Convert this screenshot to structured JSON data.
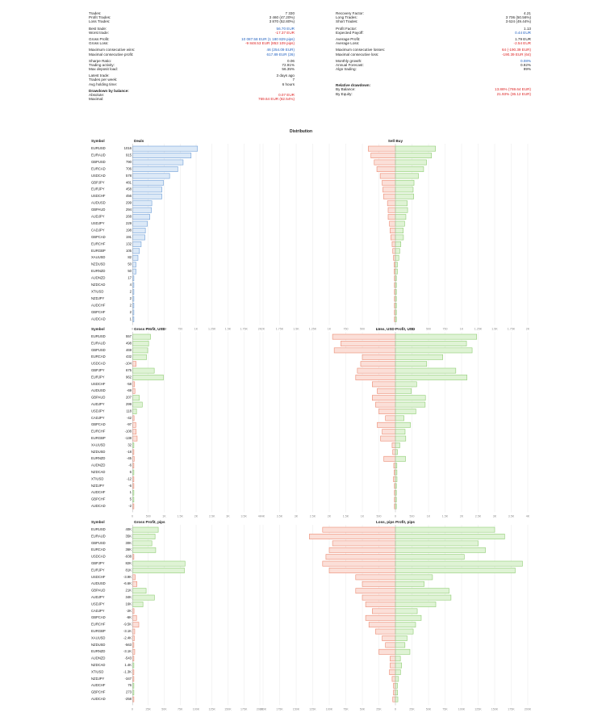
{
  "stats": {
    "left": [
      {
        "k": "Trades:",
        "v": "7 330",
        "c": ""
      },
      {
        "k": "Profit Trades:",
        "v": "3 460 (47.20%)",
        "c": ""
      },
      {
        "k": "Loss Trades:",
        "v": "3 870 (52.80%)",
        "c": ""
      },
      {
        "gap": true
      },
      {
        "k": "Best trade:",
        "v": "56.70 EUR",
        "c": "blue"
      },
      {
        "k": "Worst trade:",
        "v": "-17.37 EUR",
        "c": "red"
      },
      {
        "gap": true
      },
      {
        "k": "Gross Profit:",
        "v": "10 087.58 EUR (1 180 829 pips)",
        "c": "blue"
      },
      {
        "k": "Gross Loss:",
        "v": "-9 848.53 EUR (853 109 pips)",
        "c": "red"
      },
      {
        "gap": true
      },
      {
        "k": "Maximum consecutive wins:",
        "v": "46 (254.09 EUR)",
        "c": "blue"
      },
      {
        "k": "Maximal consecutive profit:",
        "v": "617.89 EUR (26)",
        "c": "blue"
      },
      {
        "gap": true
      },
      {
        "k": "Sharpe Ratio:",
        "v": "0.06",
        "c": ""
      },
      {
        "k": "Trading activity:",
        "v": "72.91%",
        "c": ""
      },
      {
        "k": "Max deposit load:",
        "v": "56.35%",
        "c": ""
      },
      {
        "gap": true
      },
      {
        "k": "Latest trade:",
        "v": "3 days ago",
        "c": ""
      },
      {
        "k": "Trades per week:",
        "v": "7",
        "c": ""
      },
      {
        "k": "Avg holding time:",
        "v": "6 hours",
        "c": ""
      },
      {
        "gap": true
      },
      {
        "k": "Drawdown by balance:",
        "v": "",
        "c": "",
        "h": true
      },
      {
        "k": "Absolute:",
        "v": "0.07 EUR",
        "c": "red"
      },
      {
        "k": "Maximal:",
        "v": "769.64 EUR (82.54%)",
        "c": "red"
      }
    ],
    "right": [
      {
        "k": "Recovery Factor:",
        "v": "4.21",
        "c": ""
      },
      {
        "k": "Long Trades:",
        "v": "3 706 (50.56%)",
        "c": ""
      },
      {
        "k": "Short Trades:",
        "v": "3 624 (49.44%)",
        "c": ""
      },
      {
        "gap": true
      },
      {
        "k": "Profit Factor:",
        "v": "1.13",
        "c": ""
      },
      {
        "k": "Expected Payoff:",
        "v": "0.44 EUR",
        "c": "blue"
      },
      {
        "gap": true
      },
      {
        "k": "Average Profit:",
        "v": "1.79 EUR",
        "c": ""
      },
      {
        "k": "Average Loss:",
        "v": "-2.54 EUR",
        "c": "red"
      },
      {
        "gap": true
      },
      {
        "k": "Maximum consecutive losses:",
        "v": "64 (-190.39 EUR)",
        "c": "red"
      },
      {
        "k": "Maximal consecutive loss:",
        "v": "-190.39 EUR (64)",
        "c": "red"
      },
      {
        "gap": true
      },
      {
        "k": "Monthly growth:",
        "v": "0.08%",
        "c": "blue"
      },
      {
        "k": "Annual Forecast:",
        "v": "0.92%",
        "c": ""
      },
      {
        "k": "Algo trading:",
        "v": "99%",
        "c": ""
      },
      {
        "gap": true
      },
      {
        "gap": true
      },
      {
        "gap": true
      },
      {
        "gap": true
      },
      {
        "gap": true
      },
      {
        "k": "Relative drawdown:",
        "v": "",
        "c": "",
        "h": true
      },
      {
        "k": "By Balance:",
        "v": "13.86% (769.64 EUR)",
        "c": "red"
      },
      {
        "k": "By Equity:",
        "v": "21.93% (36.12 EUR)",
        "c": "red"
      }
    ]
  },
  "dist_title": "Distribution",
  "chart_data": [
    {
      "type": "bar",
      "header_symbol": "Symbol",
      "left_title": "Deals",
      "right_title": "Sell  Buy",
      "symbols": [
        "EURUSD",
        "EURAUD",
        "GBPUSD",
        "EURCAD",
        "USDCAD",
        "GBPJPY",
        "EURJPY",
        "USDCHF",
        "AUDUSD",
        "GBPAUD",
        "AUDJPY",
        "USDJPY",
        "CADJPY",
        "GBPCAD",
        "EURCHF",
        "EURGBP",
        "XAUUSD",
        "NZDUSD",
        "EURNZD",
        "AUDNZD",
        "NZDCAD",
        "XTIUSD",
        "NZDJPY",
        "AUDCHF",
        "GBPCHF",
        "AUDCAD"
      ],
      "labels": [
        "1016",
        "915",
        "790",
        "706",
        "578",
        "481",
        "458",
        "456",
        "299",
        "294",
        "268",
        "229",
        "198",
        "191",
        "132",
        "105",
        "82",
        "50",
        "50",
        "17",
        "4",
        "2",
        "2",
        "2",
        "2",
        "1"
      ],
      "values": [
        1016,
        915,
        790,
        706,
        578,
        481,
        458,
        456,
        299,
        294,
        268,
        229,
        198,
        191,
        132,
        105,
        82,
        50,
        50,
        17,
        4,
        2,
        2,
        2,
        2,
        1
      ],
      "sell": [
        410,
        370,
        320,
        280,
        230,
        200,
        190,
        180,
        120,
        110,
        110,
        90,
        80,
        70,
        50,
        40,
        30,
        20,
        20,
        8,
        2,
        1,
        1,
        1,
        1,
        1
      ],
      "buy": [
        606,
        545,
        470,
        426,
        348,
        281,
        268,
        276,
        179,
        184,
        158,
        139,
        118,
        121,
        82,
        65,
        52,
        30,
        30,
        9,
        2,
        1,
        1,
        1,
        1,
        0
      ],
      "xlim": [
        0,
        2000
      ],
      "xticks_left": [
        "0",
        "250",
        "500",
        "750",
        "1K",
        "1.25K",
        "1.5K",
        "1.75K",
        "2K"
      ],
      "xticks_right": [
        "2K",
        "1.75K",
        "1.5K",
        "1.25K",
        "1K",
        "750",
        "500",
        "250",
        "0",
        "250",
        "500",
        "750",
        "1K",
        "1.25K",
        "1.5K",
        "1.75K",
        "2K"
      ]
    },
    {
      "type": "bar",
      "header_symbol": "Symbol",
      "left_title": "Gross Profit, USD",
      "right_title": "Loss, USD  Profit, USD",
      "symbols": [
        "EURUSD",
        "EURAUD",
        "GBPUSD",
        "EURCAD",
        "USDCAD",
        "GBPJPY",
        "EURJPY",
        "USDCHF",
        "AUDUSD",
        "GBPAUD",
        "AUDJPY",
        "USDJPY",
        "CADJPY",
        "GBPCAD",
        "EURCHF",
        "EURGBP",
        "XAUUSD",
        "NZDUSD",
        "EURNZD",
        "AUDNZD",
        "NZDCAD",
        "XTIUSD",
        "NZDJPY",
        "AUDCHF",
        "GBPCHF",
        "AUDCAD"
      ],
      "labels": [
        "557",
        "498",
        "469",
        "432",
        "-104",
        "675",
        "962",
        "-58",
        "-69",
        "207",
        "299",
        "118",
        "-42",
        "-97",
        "-108",
        "-138",
        "32",
        "-18",
        "-45",
        "-6",
        "6",
        "-12",
        "-6",
        "1",
        "5",
        "-2"
      ],
      "values": [
        557,
        498,
        469,
        432,
        -104,
        675,
        962,
        -58,
        -69,
        207,
        299,
        118,
        -42,
        -97,
        -108,
        -138,
        32,
        -18,
        -45,
        -6,
        6,
        -12,
        -6,
        1,
        5,
        -2
      ],
      "loss": [
        1900,
        1650,
        1850,
        1000,
        1050,
        1150,
        1200,
        700,
        550,
        700,
        600,
        500,
        300,
        550,
        400,
        450,
        100,
        80,
        350,
        50,
        40,
        60,
        30,
        10,
        10,
        20
      ],
      "profit": [
        2457,
        2148,
        2319,
        1432,
        946,
        1825,
        2162,
        642,
        481,
        907,
        899,
        618,
        258,
        453,
        292,
        312,
        132,
        62,
        305,
        44,
        46,
        48,
        24,
        11,
        15,
        18
      ],
      "xlim": [
        0,
        4000
      ],
      "xticks_left": [
        "0",
        "500",
        "1K",
        "1.5K",
        "2K",
        "2.5K",
        "3K",
        "3.5K",
        "4K"
      ],
      "xticks_right": [
        "4K",
        "3.5K",
        "3K",
        "2.5K",
        "2K",
        "1.5K",
        "1K",
        "500",
        "0",
        "500",
        "1K",
        "1.5K",
        "2K",
        "2.5K",
        "3K",
        "3.5K",
        "4K"
      ]
    },
    {
      "type": "bar",
      "header_symbol": "Symbol",
      "left_title": "Gross Profit, pips",
      "right_title": "Loss, pips  Profit, pips",
      "symbols": [
        "EURUSD",
        "EURAUD",
        "GBPUSD",
        "EURCAD",
        "USDCAD",
        "GBPJPY",
        "EURJPY",
        "USDCHF",
        "AUDUSD",
        "GBPAUD",
        "AUDJPY",
        "USDJPY",
        "CADJPY",
        "GBPCAD",
        "EURCHF",
        "EURGBP",
        "XAUUSD",
        "NZDUSD",
        "EURNZD",
        "AUDNZD",
        "NZDCAD",
        "XTIUSD",
        "NZDJPY",
        "AUDCHF",
        "GBPCHF",
        "AUDCAD"
      ],
      "labels": [
        "40K",
        "35K",
        "30K",
        "36K",
        "-938",
        "82K",
        "81K",
        "-3.9K",
        "-6.6K",
        "21K",
        "34K",
        "16K",
        "-2K",
        "-6K",
        "-9.5K",
        "-3.1K",
        "-2.4K",
        "-563",
        "-3.1K",
        "-543",
        "1.4K",
        "-1.3K",
        "-347",
        "76",
        "273",
        "-258"
      ],
      "values": [
        40000,
        35000,
        30000,
        36000,
        -938,
        82000,
        81000,
        -3900,
        -6600,
        21000,
        34000,
        16000,
        -2000,
        -6000,
        -9500,
        -3100,
        -2400,
        -563,
        -3100,
        -543,
        1400,
        -1300,
        -347,
        76,
        273,
        -258
      ],
      "loss": [
        110000,
        130000,
        95000,
        100000,
        105000,
        110000,
        100000,
        60000,
        50000,
        60000,
        50000,
        45000,
        35000,
        45000,
        40000,
        30000,
        20000,
        15000,
        25000,
        8000,
        8000,
        9000,
        5000,
        3000,
        3000,
        4000
      ],
      "profit": [
        150000,
        165000,
        125000,
        136000,
        104000,
        192000,
        181000,
        56000,
        43400,
        81000,
        84000,
        61000,
        33000,
        39000,
        30500,
        26900,
        17600,
        14400,
        21900,
        7500,
        9400,
        7700,
        4700,
        3100,
        3300,
        3700
      ],
      "xlim": [
        0,
        200000
      ],
      "xticks_left": [
        "0",
        "25K",
        "50K",
        "75K",
        "100K",
        "125K",
        "150K",
        "175K",
        "200K"
      ],
      "xticks_right": [
        "200K",
        "175K",
        "150K",
        "125K",
        "100K",
        "75K",
        "50K",
        "25K",
        "0",
        "25K",
        "50K",
        "75K",
        "100K",
        "125K",
        "150K",
        "175K",
        "200K"
      ]
    }
  ],
  "colors": {
    "blue_fill": "#dce9f7",
    "blue_stroke": "#6f9fd8",
    "green_fill": "#dff3d5",
    "green_stroke": "#8fcd73",
    "red_fill": "#fbdfd8",
    "red_stroke": "#ec8a72",
    "grid": "#e8e8e8",
    "text": "#222222"
  }
}
